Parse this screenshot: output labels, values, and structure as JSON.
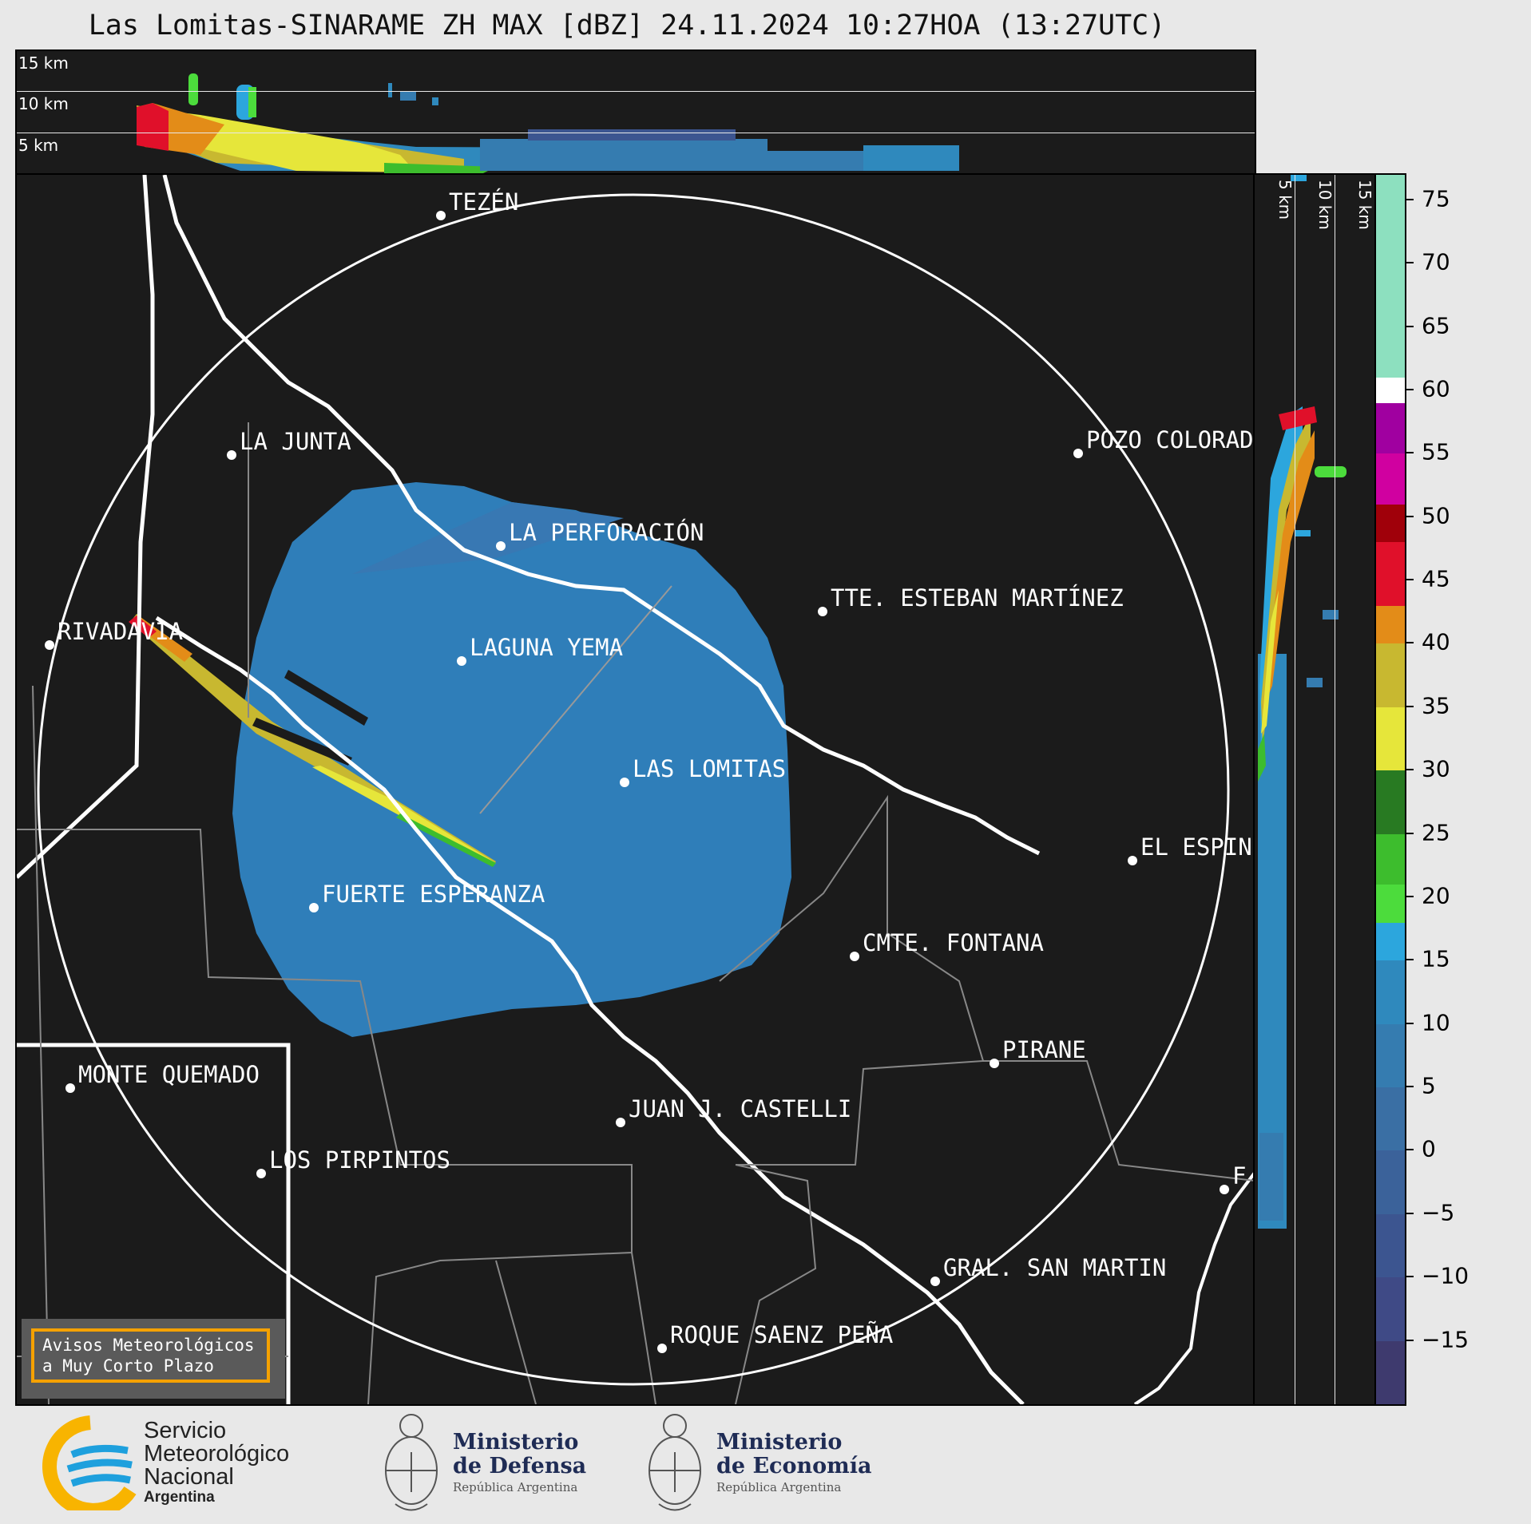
{
  "title": "Las Lomitas-SINARAME ZH MAX [dBZ] 24.11.2024 10:27HOA (13:27UTC)",
  "top_panel": {
    "altitude_labels": [
      "15 km",
      "10 km",
      "5 km"
    ]
  },
  "side_panel": {
    "altitude_labels": [
      "5 km",
      "10 km",
      "15 km"
    ]
  },
  "colorbar": {
    "unit": "dBZ",
    "range": [
      -20,
      77
    ],
    "tick_labels": [
      "75",
      "70",
      "65",
      "60",
      "55",
      "50",
      "45",
      "40",
      "35",
      "30",
      "25",
      "20",
      "15",
      "10",
      "5",
      "0",
      "−5",
      "−10",
      "−15"
    ],
    "tick_values": [
      75,
      70,
      65,
      60,
      55,
      50,
      45,
      40,
      35,
      30,
      25,
      20,
      15,
      10,
      5,
      0,
      -5,
      -10,
      -15
    ],
    "segments": [
      {
        "from": -20,
        "to": -15,
        "color": "#3e3a6e"
      },
      {
        "from": -15,
        "to": -10,
        "color": "#3f4a86"
      },
      {
        "from": -10,
        "to": -5,
        "color": "#3c5590"
      },
      {
        "from": -5,
        "to": 0,
        "color": "#3b629a"
      },
      {
        "from": 0,
        "to": 5,
        "color": "#3a6fa4"
      },
      {
        "from": 5,
        "to": 10,
        "color": "#357cb0"
      },
      {
        "from": 10,
        "to": 15,
        "color": "#2f89bd"
      },
      {
        "from": 15,
        "to": 18,
        "color": "#2ca6dd"
      },
      {
        "from": 18,
        "to": 21,
        "color": "#4cdc3c"
      },
      {
        "from": 21,
        "to": 25,
        "color": "#3dbd2d"
      },
      {
        "from": 25,
        "to": 30,
        "color": "#287a22"
      },
      {
        "from": 30,
        "to": 35,
        "color": "#e6e63a"
      },
      {
        "from": 35,
        "to": 40,
        "color": "#c8b830"
      },
      {
        "from": 40,
        "to": 43,
        "color": "#e38c18"
      },
      {
        "from": 43,
        "to": 48,
        "color": "#e0102a"
      },
      {
        "from": 48,
        "to": 51,
        "color": "#a0000a"
      },
      {
        "from": 51,
        "to": 55,
        "color": "#d000a0"
      },
      {
        "from": 55,
        "to": 59,
        "color": "#a000a0"
      },
      {
        "from": 59,
        "to": 61,
        "color": "#ffffff"
      },
      {
        "from": 61,
        "to": 77,
        "color": "#8de0bf"
      }
    ]
  },
  "places": [
    {
      "name": "TEZÉN"
    },
    {
      "name": "LA JUNTA"
    },
    {
      "name": "POZO COLORAD"
    },
    {
      "name": "LA PERFORACIÓN"
    },
    {
      "name": "TTE. ESTEBAN MARTÍNEZ"
    },
    {
      "name": "RIVADAVIA"
    },
    {
      "name": "LAGUNA YEMA"
    },
    {
      "name": "LAS LOMITAS"
    },
    {
      "name": "EL ESPIN"
    },
    {
      "name": "FUERTE ESPERANZA"
    },
    {
      "name": "CMTE. FONTANA"
    },
    {
      "name": "PIRANE"
    },
    {
      "name": "MONTE QUEMADO"
    },
    {
      "name": "JUAN J. CASTELLI"
    },
    {
      "name": "LOS PIRPINTOS"
    },
    {
      "name": "GRAL. SAN MARTIN"
    },
    {
      "name": "ROQUE SAENZ PEÑA"
    },
    {
      "name": "F"
    }
  ],
  "alert": {
    "line1": "Avisos Meteorológicos",
    "line2": "a Muy Corto Plazo"
  },
  "footer": {
    "smn_line1": "Servicio",
    "smn_line2": "Meteorológico",
    "smn_line3": "Nacional",
    "smn_line4": "Argentina",
    "defensa_line1": "Ministerio",
    "defensa_line2": "de Defensa",
    "defensa_line3": "República Argentina",
    "economia_line1": "Ministerio",
    "economia_line2": "de Economía",
    "economia_line3": "República Argentina"
  }
}
